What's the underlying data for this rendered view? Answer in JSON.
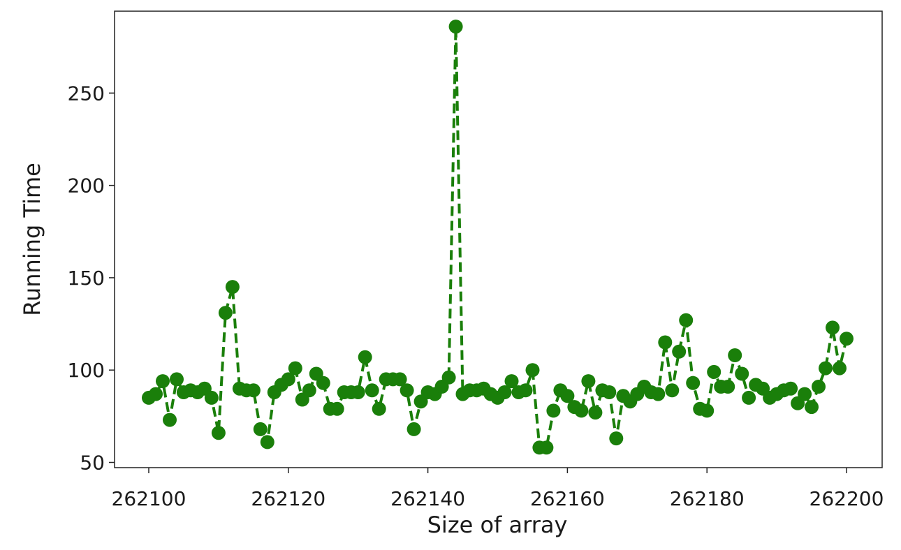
{
  "chart_data": {
    "type": "line",
    "xlabel": "Size of array",
    "ylabel": "Running Time",
    "xlim": [
      262100,
      262200
    ],
    "ylim": [
      50,
      290
    ],
    "xticks": [
      262100,
      262120,
      262140,
      262160,
      262180,
      262200
    ],
    "yticks": [
      50,
      100,
      150,
      200,
      250
    ],
    "grid": false,
    "series": [
      {
        "color": "#1a7f0a",
        "line_style": "dashed",
        "marker": "circle",
        "x": [
          262100,
          262101,
          262102,
          262103,
          262104,
          262105,
          262106,
          262107,
          262108,
          262109,
          262110,
          262111,
          262112,
          262113,
          262114,
          262115,
          262116,
          262117,
          262118,
          262119,
          262120,
          262121,
          262122,
          262123,
          262124,
          262125,
          262126,
          262127,
          262128,
          262129,
          262130,
          262131,
          262132,
          262133,
          262134,
          262135,
          262136,
          262137,
          262138,
          262139,
          262140,
          262141,
          262142,
          262143,
          262144,
          262145,
          262146,
          262147,
          262148,
          262149,
          262150,
          262151,
          262152,
          262153,
          262154,
          262155,
          262156,
          262157,
          262158,
          262159,
          262160,
          262161,
          262162,
          262163,
          262164,
          262165,
          262166,
          262167,
          262168,
          262169,
          262170,
          262171,
          262172,
          262173,
          262174,
          262175,
          262176,
          262177,
          262178,
          262179,
          262180,
          262181,
          262182,
          262183,
          262184,
          262185,
          262186,
          262187,
          262188,
          262189,
          262190,
          262191,
          262192,
          262193,
          262194,
          262195,
          262196,
          262197,
          262198,
          262199,
          262200
        ],
        "y": [
          85,
          87,
          94,
          73,
          95,
          88,
          89,
          88,
          90,
          85,
          66,
          131,
          145,
          90,
          89,
          89,
          68,
          61,
          88,
          92,
          95,
          101,
          84,
          89,
          98,
          93,
          79,
          79,
          88,
          88,
          88,
          107,
          89,
          79,
          95,
          95,
          95,
          89,
          68,
          83,
          88,
          87,
          91,
          96,
          286,
          87,
          89,
          89,
          90,
          87,
          85,
          88,
          94,
          88,
          89,
          100,
          58,
          58,
          78,
          89,
          86,
          80,
          78,
          94,
          77,
          89,
          88,
          63,
          86,
          83,
          87,
          91,
          88,
          87,
          115,
          89,
          110,
          127,
          93,
          79,
          78,
          99,
          91,
          91,
          108,
          98,
          85,
          92,
          90,
          85,
          87,
          89,
          90,
          82,
          87,
          80,
          91,
          101,
          123,
          101,
          117
        ]
      }
    ]
  }
}
